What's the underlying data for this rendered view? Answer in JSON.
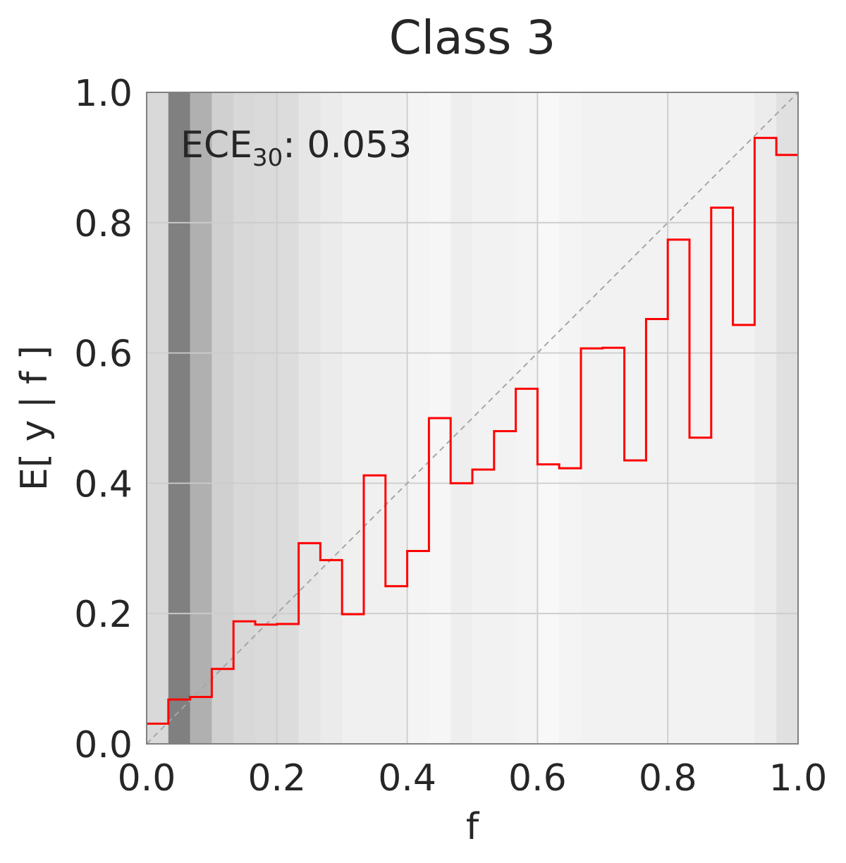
{
  "chart_data": {
    "type": "line",
    "title": "Class 3",
    "xlabel": "f",
    "ylabel": "E[ y | f ]",
    "xlim": [
      0,
      1
    ],
    "ylim": [
      0,
      1
    ],
    "xticks": [
      "0.0",
      "0.2",
      "0.4",
      "0.6",
      "0.8",
      "1.0"
    ],
    "yticks": [
      "0.0",
      "0.2",
      "0.4",
      "0.6",
      "0.8",
      "1.0"
    ],
    "grid": true,
    "annotation": {
      "prefix": "ECE",
      "subscript": "30",
      "value": ": 0.053"
    },
    "diagonal": "y = x (dashed)",
    "bins": 30,
    "step_values": [
      0.031,
      0.068,
      0.072,
      0.115,
      0.188,
      0.183,
      0.184,
      0.308,
      0.282,
      0.199,
      0.412,
      0.242,
      0.296,
      0.5,
      0.4,
      0.421,
      0.48,
      0.545,
      0.429,
      0.423,
      0.607,
      0.608,
      0.435,
      0.652,
      0.774,
      0.47,
      0.823,
      0.643,
      0.93,
      0.904
    ],
    "bin_density_shades": [
      "#d9d9d9",
      "#808080",
      "#b0b0b0",
      "#d0d0d0",
      "#d8d8d8",
      "#dadada",
      "#dcdcdc",
      "#e6e6e6",
      "#ebebeb",
      "#f0f0f0",
      "#f0f0f0",
      "#f0f0f0",
      "#f4f4f4",
      "#f6f6f6",
      "#eeeeee",
      "#f2f2f2",
      "#f2f2f2",
      "#f4f4f4",
      "#f8f8f8",
      "#f4f4f4",
      "#f2f2f2",
      "#f2f2f2",
      "#f2f2f2",
      "#f2f2f2",
      "#f2f2f2",
      "#f2f2f2",
      "#f2f2f2",
      "#f2f2f2",
      "#ececec",
      "#e0e0e0"
    ],
    "colors": {
      "step": "#ff0000",
      "diagonal": "#a6a6a6",
      "grid": "#cccccc",
      "frame": "#808080"
    }
  }
}
